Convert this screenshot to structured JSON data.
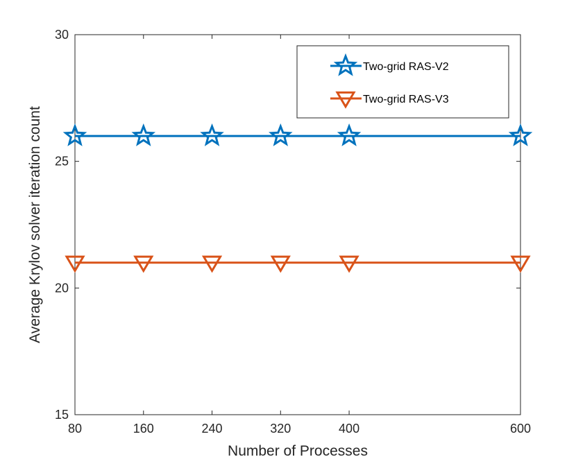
{
  "chart_data": {
    "type": "line",
    "title": "",
    "xlabel": "Number of Processes",
    "ylabel": "Average Krylov solver iteration count",
    "x": [
      80,
      160,
      240,
      320,
      400,
      600
    ],
    "xticks": [
      "80",
      "160",
      "240",
      "320",
      "400",
      "600"
    ],
    "xlim": [
      80,
      600
    ],
    "ylim": [
      15,
      30
    ],
    "yticks": [
      "15",
      "20",
      "25",
      "30"
    ],
    "grid": false,
    "legend_position": "top-right",
    "series": [
      {
        "name": "Two-grid RAS-V2",
        "values": [
          26,
          26,
          26,
          26,
          26,
          26
        ],
        "color": "#0072BD",
        "marker": "star"
      },
      {
        "name": "Two-grid RAS-V3",
        "values": [
          21,
          21,
          21,
          21,
          21,
          21
        ],
        "color": "#D95319",
        "marker": "triangle-down"
      }
    ]
  }
}
